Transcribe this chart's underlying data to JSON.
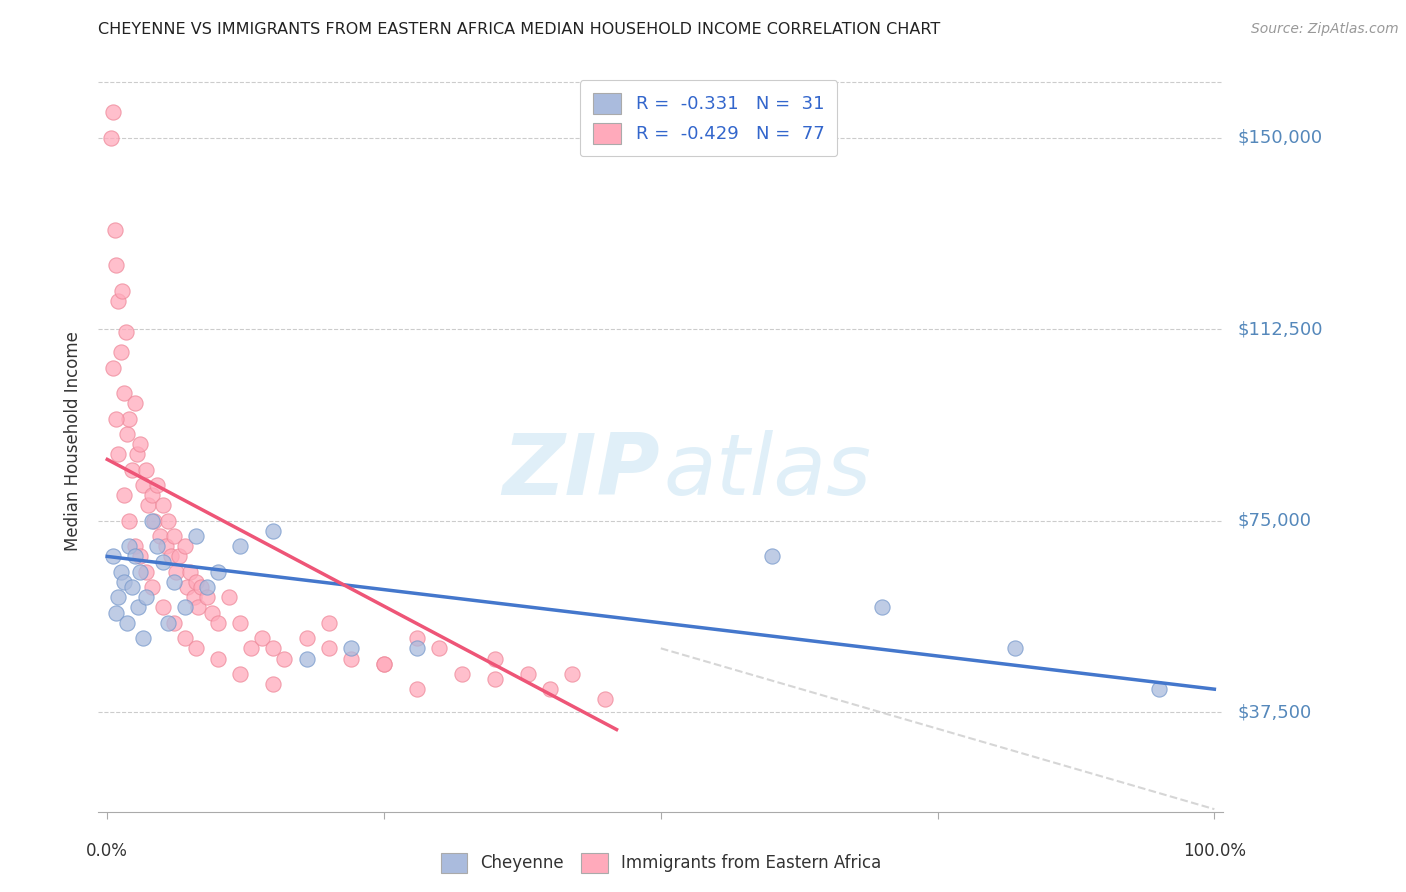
{
  "title": "CHEYENNE VS IMMIGRANTS FROM EASTERN AFRICA MEDIAN HOUSEHOLD INCOME CORRELATION CHART",
  "source": "Source: ZipAtlas.com",
  "ylabel": "Median Household Income",
  "yticks": [
    37500,
    75000,
    112500,
    150000
  ],
  "ytick_labels": [
    "$37,500",
    "$75,000",
    "$112,500",
    "$150,000"
  ],
  "ymin": 18000,
  "ymax": 163000,
  "xmin": -0.008,
  "xmax": 1.008,
  "blue_color": "#AABBDD",
  "blue_edge": "#7799CC",
  "pink_color": "#FFAABB",
  "pink_edge": "#EE8899",
  "blue_line_color": "#4477CC",
  "pink_line_color": "#EE5577",
  "dash_color": "#CCCCCC",
  "axis_color": "#CCCCCC",
  "grid_color": "#DDDDDD",
  "label_color": "#5588BB",
  "text_color": "#333333",
  "source_color": "#999999",
  "legend_entry1": "R =  -0.331   N =  31",
  "legend_entry2": "R =  -0.429   N =  77",
  "blue_scatter_x": [
    0.005,
    0.008,
    0.01,
    0.012,
    0.015,
    0.018,
    0.02,
    0.022,
    0.025,
    0.028,
    0.03,
    0.032,
    0.035,
    0.04,
    0.045,
    0.05,
    0.055,
    0.06,
    0.07,
    0.08,
    0.09,
    0.1,
    0.12,
    0.15,
    0.18,
    0.22,
    0.28,
    0.6,
    0.7,
    0.82,
    0.95
  ],
  "blue_scatter_y": [
    68000,
    57000,
    60000,
    65000,
    63000,
    55000,
    70000,
    62000,
    68000,
    58000,
    65000,
    52000,
    60000,
    75000,
    70000,
    67000,
    55000,
    63000,
    58000,
    72000,
    62000,
    65000,
    70000,
    73000,
    48000,
    50000,
    50000,
    68000,
    58000,
    50000,
    42000
  ],
  "pink_scatter_x": [
    0.003,
    0.005,
    0.007,
    0.008,
    0.01,
    0.012,
    0.013,
    0.015,
    0.017,
    0.018,
    0.02,
    0.022,
    0.025,
    0.027,
    0.03,
    0.032,
    0.035,
    0.037,
    0.04,
    0.042,
    0.045,
    0.048,
    0.05,
    0.053,
    0.055,
    0.058,
    0.06,
    0.062,
    0.065,
    0.07,
    0.072,
    0.075,
    0.078,
    0.08,
    0.082,
    0.085,
    0.09,
    0.095,
    0.1,
    0.11,
    0.12,
    0.13,
    0.14,
    0.15,
    0.16,
    0.18,
    0.2,
    0.22,
    0.25,
    0.28,
    0.3,
    0.32,
    0.35,
    0.38,
    0.4,
    0.42,
    0.45,
    0.005,
    0.008,
    0.01,
    0.015,
    0.02,
    0.025,
    0.03,
    0.035,
    0.04,
    0.05,
    0.06,
    0.07,
    0.08,
    0.1,
    0.12,
    0.15,
    0.2,
    0.25,
    0.35,
    0.28
  ],
  "pink_scatter_y": [
    150000,
    155000,
    132000,
    125000,
    118000,
    108000,
    120000,
    100000,
    112000,
    92000,
    95000,
    85000,
    98000,
    88000,
    90000,
    82000,
    85000,
    78000,
    80000,
    75000,
    82000,
    72000,
    78000,
    70000,
    75000,
    68000,
    72000,
    65000,
    68000,
    70000,
    62000,
    65000,
    60000,
    63000,
    58000,
    62000,
    60000,
    57000,
    55000,
    60000,
    55000,
    50000,
    52000,
    50000,
    48000,
    52000,
    55000,
    48000,
    47000,
    52000,
    50000,
    45000,
    48000,
    45000,
    42000,
    45000,
    40000,
    105000,
    95000,
    88000,
    80000,
    75000,
    70000,
    68000,
    65000,
    62000,
    58000,
    55000,
    52000,
    50000,
    48000,
    45000,
    43000,
    50000,
    47000,
    44000,
    42000
  ]
}
